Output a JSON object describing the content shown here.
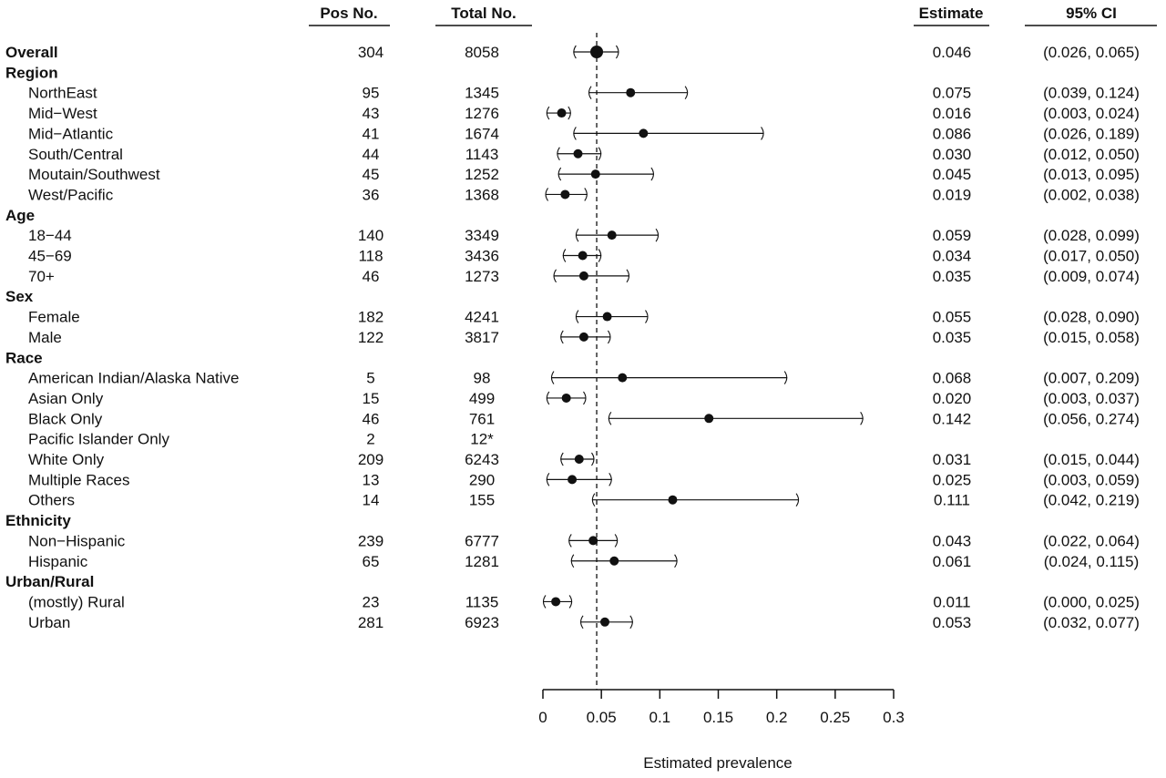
{
  "headers": {
    "pos": "Pos No.",
    "total": "Total No.",
    "estimate": "Estimate",
    "ci": "95% CI"
  },
  "chart_data": {
    "type": "forest",
    "xlabel": "Estimated prevalence",
    "xlim": [
      0,
      0.3
    ],
    "ticks": [
      0,
      0.05,
      0.1,
      0.15,
      0.2,
      0.25,
      0.3
    ],
    "tick_labels": [
      "0",
      "0.05",
      "0.1",
      "0.15",
      "0.2",
      "0.25",
      "0.3"
    ],
    "reference_line": 0.046,
    "rows": [
      {
        "kind": "overall",
        "label": "Overall",
        "pos": "304",
        "total": "8058",
        "est": 0.046,
        "lo": 0.026,
        "hi": 0.065,
        "est_text": "0.046",
        "ci_text": "(0.026, 0.065)"
      },
      {
        "kind": "group",
        "label": "Region"
      },
      {
        "kind": "item",
        "label": "NorthEast",
        "pos": "95",
        "total": "1345",
        "est": 0.075,
        "lo": 0.039,
        "hi": 0.124,
        "est_text": "0.075",
        "ci_text": "(0.039, 0.124)"
      },
      {
        "kind": "item",
        "label": "Mid−West",
        "pos": "43",
        "total": "1276",
        "est": 0.016,
        "lo": 0.003,
        "hi": 0.024,
        "est_text": "0.016",
        "ci_text": "(0.003, 0.024)"
      },
      {
        "kind": "item",
        "label": "Mid−Atlantic",
        "pos": "41",
        "total": "1674",
        "est": 0.086,
        "lo": 0.026,
        "hi": 0.189,
        "est_text": "0.086",
        "ci_text": "(0.026, 0.189)"
      },
      {
        "kind": "item",
        "label": "South/Central",
        "pos": "44",
        "total": "1143",
        "est": 0.03,
        "lo": 0.012,
        "hi": 0.05,
        "est_text": "0.030",
        "ci_text": "(0.012, 0.050)"
      },
      {
        "kind": "item",
        "label": "Moutain/Southwest",
        "pos": "45",
        "total": "1252",
        "est": 0.045,
        "lo": 0.013,
        "hi": 0.095,
        "est_text": "0.045",
        "ci_text": "(0.013, 0.095)"
      },
      {
        "kind": "item",
        "label": "West/Pacific",
        "pos": "36",
        "total": "1368",
        "est": 0.019,
        "lo": 0.002,
        "hi": 0.038,
        "est_text": "0.019",
        "ci_text": "(0.002, 0.038)"
      },
      {
        "kind": "group",
        "label": "Age"
      },
      {
        "kind": "item",
        "label": "18−44",
        "pos": "140",
        "total": "3349",
        "est": 0.059,
        "lo": 0.028,
        "hi": 0.099,
        "est_text": "0.059",
        "ci_text": "(0.028, 0.099)"
      },
      {
        "kind": "item",
        "label": "45−69",
        "pos": "118",
        "total": "3436",
        "est": 0.034,
        "lo": 0.017,
        "hi": 0.05,
        "est_text": "0.034",
        "ci_text": "(0.017, 0.050)"
      },
      {
        "kind": "item",
        "label": "70+",
        "pos": "46",
        "total": "1273",
        "est": 0.035,
        "lo": 0.009,
        "hi": 0.074,
        "est_text": "0.035",
        "ci_text": "(0.009, 0.074)"
      },
      {
        "kind": "group",
        "label": "Sex"
      },
      {
        "kind": "item",
        "label": "Female",
        "pos": "182",
        "total": "4241",
        "est": 0.055,
        "lo": 0.028,
        "hi": 0.09,
        "est_text": "0.055",
        "ci_text": "(0.028, 0.090)"
      },
      {
        "kind": "item",
        "label": "Male",
        "pos": "122",
        "total": "3817",
        "est": 0.035,
        "lo": 0.015,
        "hi": 0.058,
        "est_text": "0.035",
        "ci_text": "(0.015, 0.058)"
      },
      {
        "kind": "group",
        "label": "Race"
      },
      {
        "kind": "item",
        "label": "American Indian/Alaska Native",
        "pos": "5",
        "total": "98",
        "est": 0.068,
        "lo": 0.007,
        "hi": 0.209,
        "est_text": "0.068",
        "ci_text": "(0.007, 0.209)"
      },
      {
        "kind": "item",
        "label": "Asian Only",
        "pos": "15",
        "total": "499",
        "est": 0.02,
        "lo": 0.003,
        "hi": 0.037,
        "est_text": "0.020",
        "ci_text": "(0.003, 0.037)"
      },
      {
        "kind": "item",
        "label": "Black Only",
        "pos": "46",
        "total": "761",
        "est": 0.142,
        "lo": 0.056,
        "hi": 0.274,
        "est_text": "0.142",
        "ci_text": "(0.056, 0.274)"
      },
      {
        "kind": "item",
        "label": "Pacific Islander Only",
        "pos": "2",
        "total": "12*"
      },
      {
        "kind": "item",
        "label": "White Only",
        "pos": "209",
        "total": "6243",
        "est": 0.031,
        "lo": 0.015,
        "hi": 0.044,
        "est_text": "0.031",
        "ci_text": "(0.015, 0.044)"
      },
      {
        "kind": "item",
        "label": "Multiple Races",
        "pos": "13",
        "total": "290",
        "est": 0.025,
        "lo": 0.003,
        "hi": 0.059,
        "est_text": "0.025",
        "ci_text": "(0.003, 0.059)"
      },
      {
        "kind": "item",
        "label": "Others",
        "pos": "14",
        "total": "155",
        "est": 0.111,
        "lo": 0.042,
        "hi": 0.219,
        "est_text": "0.111",
        "ci_text": "(0.042, 0.219)"
      },
      {
        "kind": "group",
        "label": "Ethnicity"
      },
      {
        "kind": "item",
        "label": "Non−Hispanic",
        "pos": "239",
        "total": "6777",
        "est": 0.043,
        "lo": 0.022,
        "hi": 0.064,
        "est_text": "0.043",
        "ci_text": "(0.022, 0.064)"
      },
      {
        "kind": "item",
        "label": "Hispanic",
        "pos": "65",
        "total": "1281",
        "est": 0.061,
        "lo": 0.024,
        "hi": 0.115,
        "est_text": "0.061",
        "ci_text": "(0.024, 0.115)"
      },
      {
        "kind": "group",
        "label": "Urban/Rural"
      },
      {
        "kind": "item",
        "label": "(mostly) Rural",
        "pos": "23",
        "total": "1135",
        "est": 0.011,
        "lo": 0.0,
        "hi": 0.025,
        "est_text": "0.011",
        "ci_text": "(0.000, 0.025)"
      },
      {
        "kind": "item",
        "label": "Urban",
        "pos": "281",
        "total": "6923",
        "est": 0.053,
        "lo": 0.032,
        "hi": 0.077,
        "est_text": "0.053",
        "ci_text": "(0.032, 0.077)"
      }
    ]
  }
}
